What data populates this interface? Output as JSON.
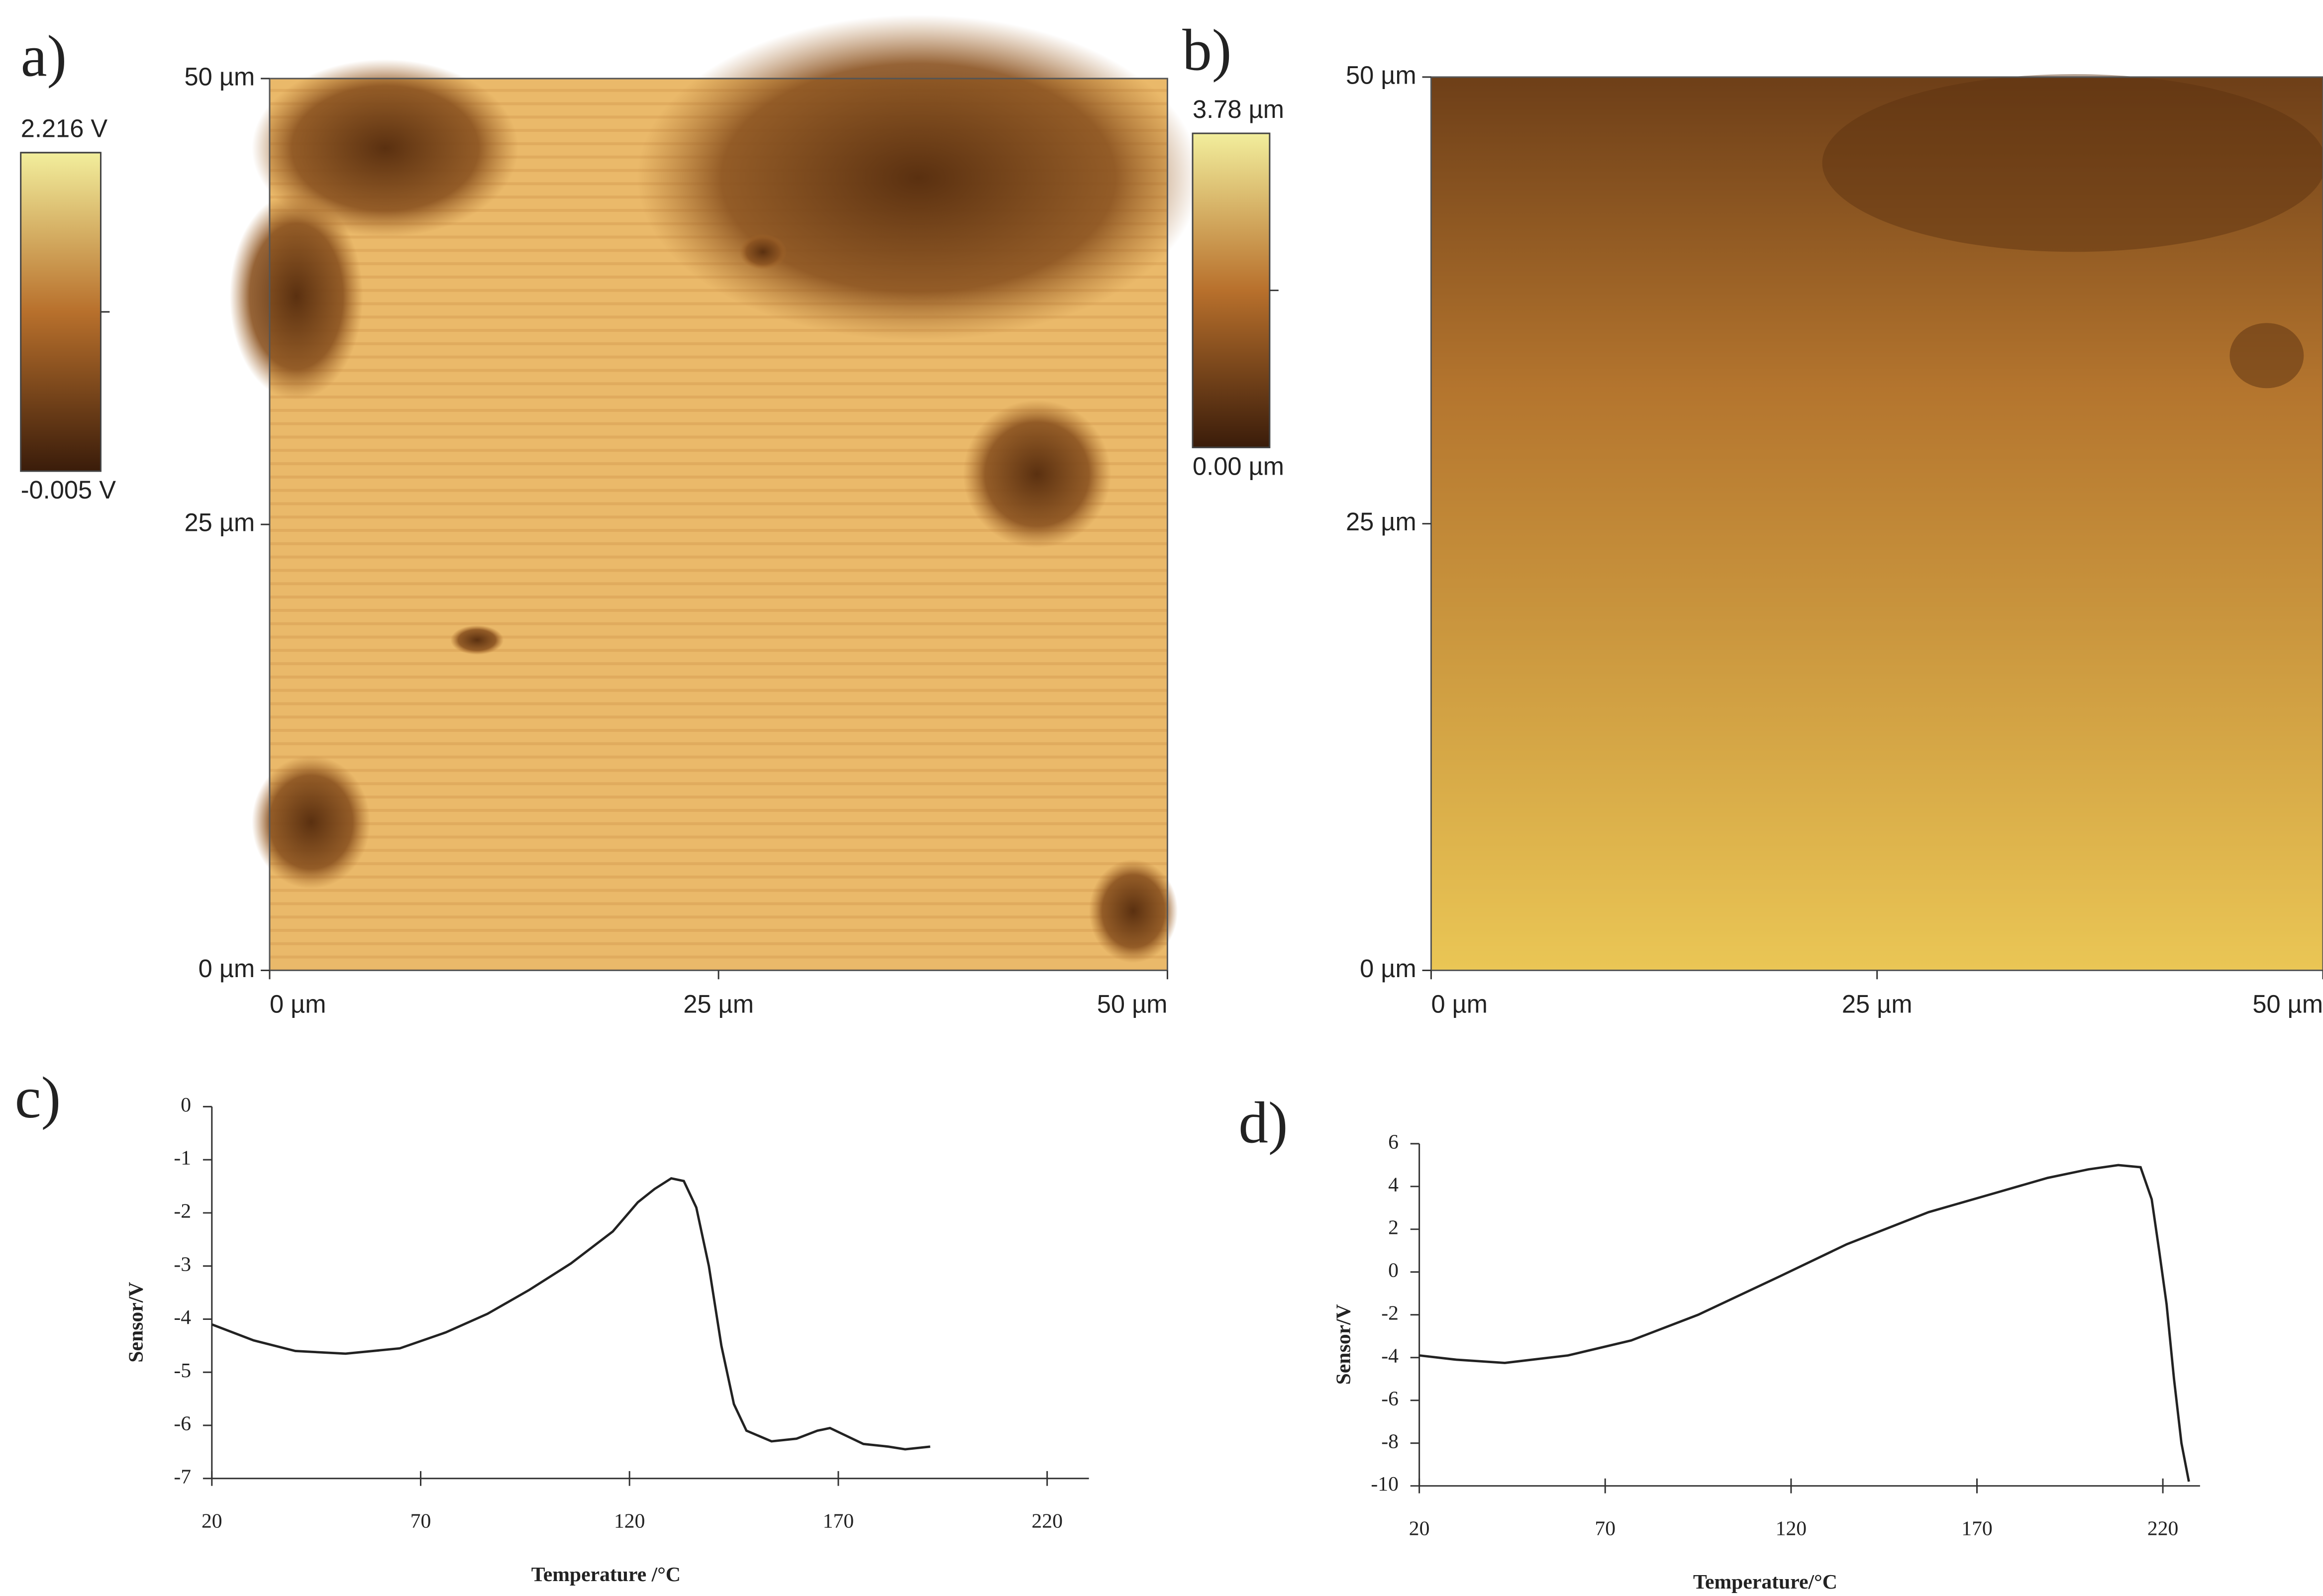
{
  "chart_data": [
    {
      "type": "image",
      "label": "a)",
      "xlim": [
        0,
        50
      ],
      "ylim": [
        0,
        50
      ],
      "xticks": [
        {
          "value": 0,
          "label": "0 µm"
        },
        {
          "value": 25,
          "label": "25 µm"
        },
        {
          "value": 50,
          "label": "50 µm"
        }
      ],
      "yticks": [
        {
          "value": 0,
          "label": "0 µm"
        },
        {
          "value": 25,
          "label": "25 µm"
        },
        {
          "value": 50,
          "label": "50 µm"
        }
      ],
      "colorbar": {
        "lim": [
          -0.005,
          2.216
        ],
        "colors": [
          "#3a1c0a",
          "#b8702c",
          "#f2ee9c"
        ],
        "ticks": [
          {
            "value": -0.005,
            "label": "-0.005 V"
          },
          {
            "value": 2.216,
            "label": "2.216 V"
          }
        ]
      }
    },
    {
      "type": "image",
      "label": "b)",
      "xlim": [
        0,
        50
      ],
      "ylim": [
        0,
        50
      ],
      "xticks": [
        {
          "value": 0,
          "label": "0 µm"
        },
        {
          "value": 25,
          "label": "25 µm"
        },
        {
          "value": 50,
          "label": "50 µm"
        }
      ],
      "yticks": [
        {
          "value": 0,
          "label": "0 µm"
        },
        {
          "value": 25,
          "label": "25 µm"
        },
        {
          "value": 50,
          "label": "50 µm"
        }
      ],
      "colorbar": {
        "lim": [
          0,
          3.78
        ],
        "colors": [
          "#3a1c0a",
          "#b8702c",
          "#f2ee9c"
        ],
        "ticks": [
          {
            "value": 0,
            "label": "0.00 µm"
          },
          {
            "value": 3.78,
            "label": "3.78 µm"
          }
        ]
      }
    },
    {
      "type": "line",
      "label": "c)",
      "xlabel": "Temperature /°C",
      "ylabel": "Sensor/V",
      "color": "#222222",
      "xlim": [
        20,
        230
      ],
      "ylim": [
        -7,
        0
      ],
      "xticks": [
        20,
        70,
        120,
        170,
        220
      ],
      "yticks": [
        0,
        -1,
        -2,
        -3,
        -4,
        -5,
        -6,
        -7
      ],
      "x": [
        20,
        30,
        40,
        52,
        65,
        76,
        86,
        96,
        106,
        116,
        122,
        126,
        130,
        133,
        136,
        139,
        142,
        145,
        148,
        154,
        160,
        165,
        168,
        172,
        176,
        182,
        186,
        192
      ],
      "values": [
        -4.1,
        -4.4,
        -4.6,
        -4.65,
        -4.55,
        -4.25,
        -3.9,
        -3.45,
        -2.95,
        -2.35,
        -1.8,
        -1.55,
        -1.35,
        -1.4,
        -1.9,
        -3.0,
        -4.5,
        -5.6,
        -6.1,
        -6.3,
        -6.25,
        -6.1,
        -6.05,
        -6.2,
        -6.35,
        -6.4,
        -6.45,
        -6.4
      ]
    },
    {
      "type": "line",
      "label": "d)",
      "xlabel": "Temperature/°C",
      "ylabel": "Sensor/V",
      "color": "#222222",
      "xlim": [
        20,
        230
      ],
      "ylim": [
        -10,
        6
      ],
      "xticks": [
        20,
        70,
        120,
        170,
        220
      ],
      "yticks": [
        6,
        4,
        2,
        0,
        -2,
        -4,
        -6,
        -8,
        -10
      ],
      "x": [
        20,
        30,
        43,
        60,
        77,
        95,
        117,
        135,
        157,
        175,
        189,
        200,
        208,
        214,
        217,
        219,
        221,
        223,
        225,
        227
      ],
      "values": [
        -3.9,
        -4.1,
        -4.25,
        -3.9,
        -3.2,
        -2.0,
        -0.2,
        1.3,
        2.8,
        3.7,
        4.4,
        4.8,
        5.0,
        4.9,
        3.4,
        1.0,
        -1.5,
        -5.0,
        -8.0,
        -9.8
      ]
    }
  ]
}
